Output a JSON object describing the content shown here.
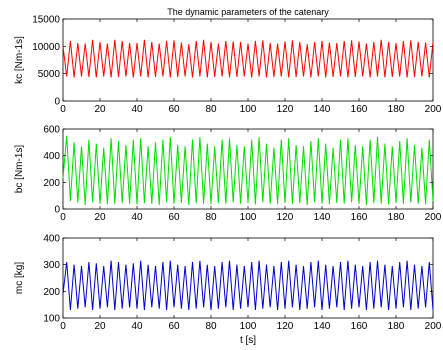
{
  "figure": {
    "title": "The dynamic parameters of the catenary",
    "xlabel": "t [s]"
  },
  "chart_data": [
    {
      "type": "line",
      "ylabel": "kc [Nm-1s]",
      "xlim": [
        0,
        200
      ],
      "ylim": [
        0,
        15000
      ],
      "xticks": [
        "0",
        "20",
        "40",
        "60",
        "80",
        "100",
        "120",
        "140",
        "160",
        "180",
        "200"
      ],
      "yticks": [
        "0",
        "5000",
        "10000",
        "15000"
      ],
      "color": "#ff0000",
      "grid": false,
      "series": [
        {
          "x": [
            0,
            2,
            4,
            6,
            8,
            10,
            12,
            14,
            16,
            18,
            20,
            22,
            24,
            26,
            28,
            30,
            32,
            34,
            36,
            38,
            40,
            42,
            44,
            46,
            48,
            50,
            52,
            54,
            56,
            58,
            60,
            62,
            64,
            66,
            68,
            70,
            72,
            74,
            76,
            78,
            80,
            82,
            84,
            86,
            88,
            90,
            92,
            94,
            96,
            98,
            100,
            102,
            104,
            106,
            108,
            110,
            112,
            114,
            116,
            118,
            120,
            122,
            124,
            126,
            128,
            130,
            132,
            134,
            136,
            138,
            140,
            142,
            144,
            146,
            148,
            150,
            152,
            154,
            156,
            158,
            160,
            162,
            164,
            166,
            168,
            170,
            172,
            174,
            176,
            178,
            180,
            182,
            184,
            186,
            188,
            190,
            192,
            194,
            196,
            198,
            200
          ],
          "y": [
            10000,
            4500,
            11000,
            4300,
            10600,
            4500,
            10500,
            4400,
            11200,
            4300,
            10800,
            4500,
            10500,
            4300,
            11200,
            4400,
            11000,
            4500,
            10600,
            4300,
            10600,
            4500,
            11200,
            4300,
            10800,
            4400,
            10500,
            4500,
            11000,
            4300,
            11100,
            4400,
            10700,
            4500,
            10400,
            4300,
            11000,
            4500,
            11200,
            4300,
            10800,
            4400,
            10500,
            4500,
            11000,
            4300,
            10900,
            4400,
            10800,
            4500,
            10500,
            4300,
            11000,
            4500,
            11100,
            4300,
            10600,
            4400,
            10500,
            4500,
            10900,
            4300,
            11100,
            4400,
            10800,
            4500,
            10400,
            4300,
            10800,
            4500,
            11000,
            4300,
            10700,
            4400,
            10600,
            4500,
            11000,
            4300,
            11100,
            4400,
            10900,
            4500,
            10500,
            4300,
            10800,
            4500,
            11200,
            4300,
            10800,
            4400,
            10600,
            4500,
            11000,
            4300,
            11100,
            4400,
            10800,
            4500,
            10700,
            4300,
            10800
          ]
        }
      ]
    },
    {
      "type": "line",
      "ylabel": "bc [Nm-1s]",
      "xlim": [
        0,
        200
      ],
      "ylim": [
        0,
        600
      ],
      "xticks": [
        "0",
        "20",
        "40",
        "60",
        "80",
        "100",
        "120",
        "140",
        "160",
        "180",
        "200"
      ],
      "yticks": [
        "0",
        "200",
        "400",
        "600"
      ],
      "color": "#00dd00",
      "grid": false,
      "series": [
        {
          "x": [
            0,
            2,
            4,
            6,
            8,
            10,
            12,
            14,
            16,
            18,
            20,
            22,
            24,
            26,
            28,
            30,
            32,
            34,
            36,
            38,
            40,
            42,
            44,
            46,
            48,
            50,
            52,
            54,
            56,
            58,
            60,
            62,
            64,
            66,
            68,
            70,
            72,
            74,
            76,
            78,
            80,
            82,
            84,
            86,
            88,
            90,
            92,
            94,
            96,
            98,
            100,
            102,
            104,
            106,
            108,
            110,
            112,
            114,
            116,
            118,
            120,
            122,
            124,
            126,
            128,
            130,
            132,
            134,
            136,
            138,
            140,
            142,
            144,
            146,
            148,
            150,
            152,
            154,
            156,
            158,
            160,
            162,
            164,
            166,
            168,
            170,
            172,
            174,
            176,
            178,
            180,
            182,
            184,
            186,
            188,
            190,
            192,
            194,
            196,
            198,
            200
          ],
          "y": [
            230,
            550,
            60,
            500,
            50,
            470,
            30,
            520,
            50,
            490,
            40,
            460,
            35,
            530,
            40,
            510,
            45,
            480,
            40,
            520,
            35,
            530,
            45,
            470,
            40,
            500,
            30,
            520,
            50,
            540,
            40,
            480,
            45,
            470,
            30,
            520,
            45,
            540,
            40,
            490,
            35,
            470,
            45,
            520,
            40,
            530,
            50,
            480,
            40,
            470,
            45,
            520,
            35,
            540,
            50,
            490,
            40,
            460,
            35,
            520,
            45,
            530,
            40,
            480,
            45,
            470,
            30,
            510,
            50,
            530,
            40,
            490,
            35,
            460,
            45,
            520,
            40,
            530,
            50,
            480,
            40,
            470,
            30,
            520,
            45,
            540,
            40,
            490,
            35,
            470,
            45,
            510,
            40,
            530,
            50,
            480,
            40,
            460,
            35,
            520,
            60
          ]
        }
      ]
    },
    {
      "type": "line",
      "ylabel": "mc [kg]",
      "xlim": [
        0,
        200
      ],
      "ylim": [
        100,
        400
      ],
      "xticks": [
        "0",
        "20",
        "40",
        "60",
        "80",
        "100",
        "120",
        "140",
        "160",
        "180",
        "200"
      ],
      "yticks": [
        "100",
        "200",
        "300",
        "400"
      ],
      "color": "#0000cc",
      "grid": false,
      "series": [
        {
          "x": [
            0,
            2,
            4,
            6,
            8,
            10,
            12,
            14,
            16,
            18,
            20,
            22,
            24,
            26,
            28,
            30,
            32,
            34,
            36,
            38,
            40,
            42,
            44,
            46,
            48,
            50,
            52,
            54,
            56,
            58,
            60,
            62,
            64,
            66,
            68,
            70,
            72,
            74,
            76,
            78,
            80,
            82,
            84,
            86,
            88,
            90,
            92,
            94,
            96,
            98,
            100,
            102,
            104,
            106,
            108,
            110,
            112,
            114,
            116,
            118,
            120,
            122,
            124,
            126,
            128,
            130,
            132,
            134,
            136,
            138,
            140,
            142,
            144,
            146,
            148,
            150,
            152,
            154,
            156,
            158,
            160,
            162,
            164,
            166,
            168,
            170,
            172,
            174,
            176,
            178,
            180,
            182,
            184,
            186,
            188,
            190,
            192,
            194,
            196,
            198,
            200
          ],
          "y": [
            190,
            310,
            130,
            300,
            135,
            295,
            140,
            310,
            130,
            305,
            135,
            295,
            140,
            315,
            130,
            310,
            135,
            300,
            140,
            305,
            135,
            315,
            130,
            300,
            140,
            295,
            135,
            310,
            130,
            315,
            140,
            300,
            135,
            295,
            130,
            310,
            135,
            315,
            140,
            300,
            130,
            295,
            135,
            310,
            140,
            315,
            130,
            300,
            135,
            295,
            140,
            310,
            130,
            315,
            135,
            300,
            140,
            295,
            130,
            310,
            135,
            315,
            140,
            300,
            130,
            295,
            135,
            310,
            140,
            315,
            130,
            300,
            135,
            295,
            140,
            310,
            130,
            315,
            135,
            300,
            140,
            295,
            130,
            310,
            135,
            315,
            140,
            300,
            130,
            295,
            135,
            310,
            140,
            315,
            130,
            300,
            135,
            295,
            140,
            310,
            130
          ]
        }
      ]
    }
  ]
}
